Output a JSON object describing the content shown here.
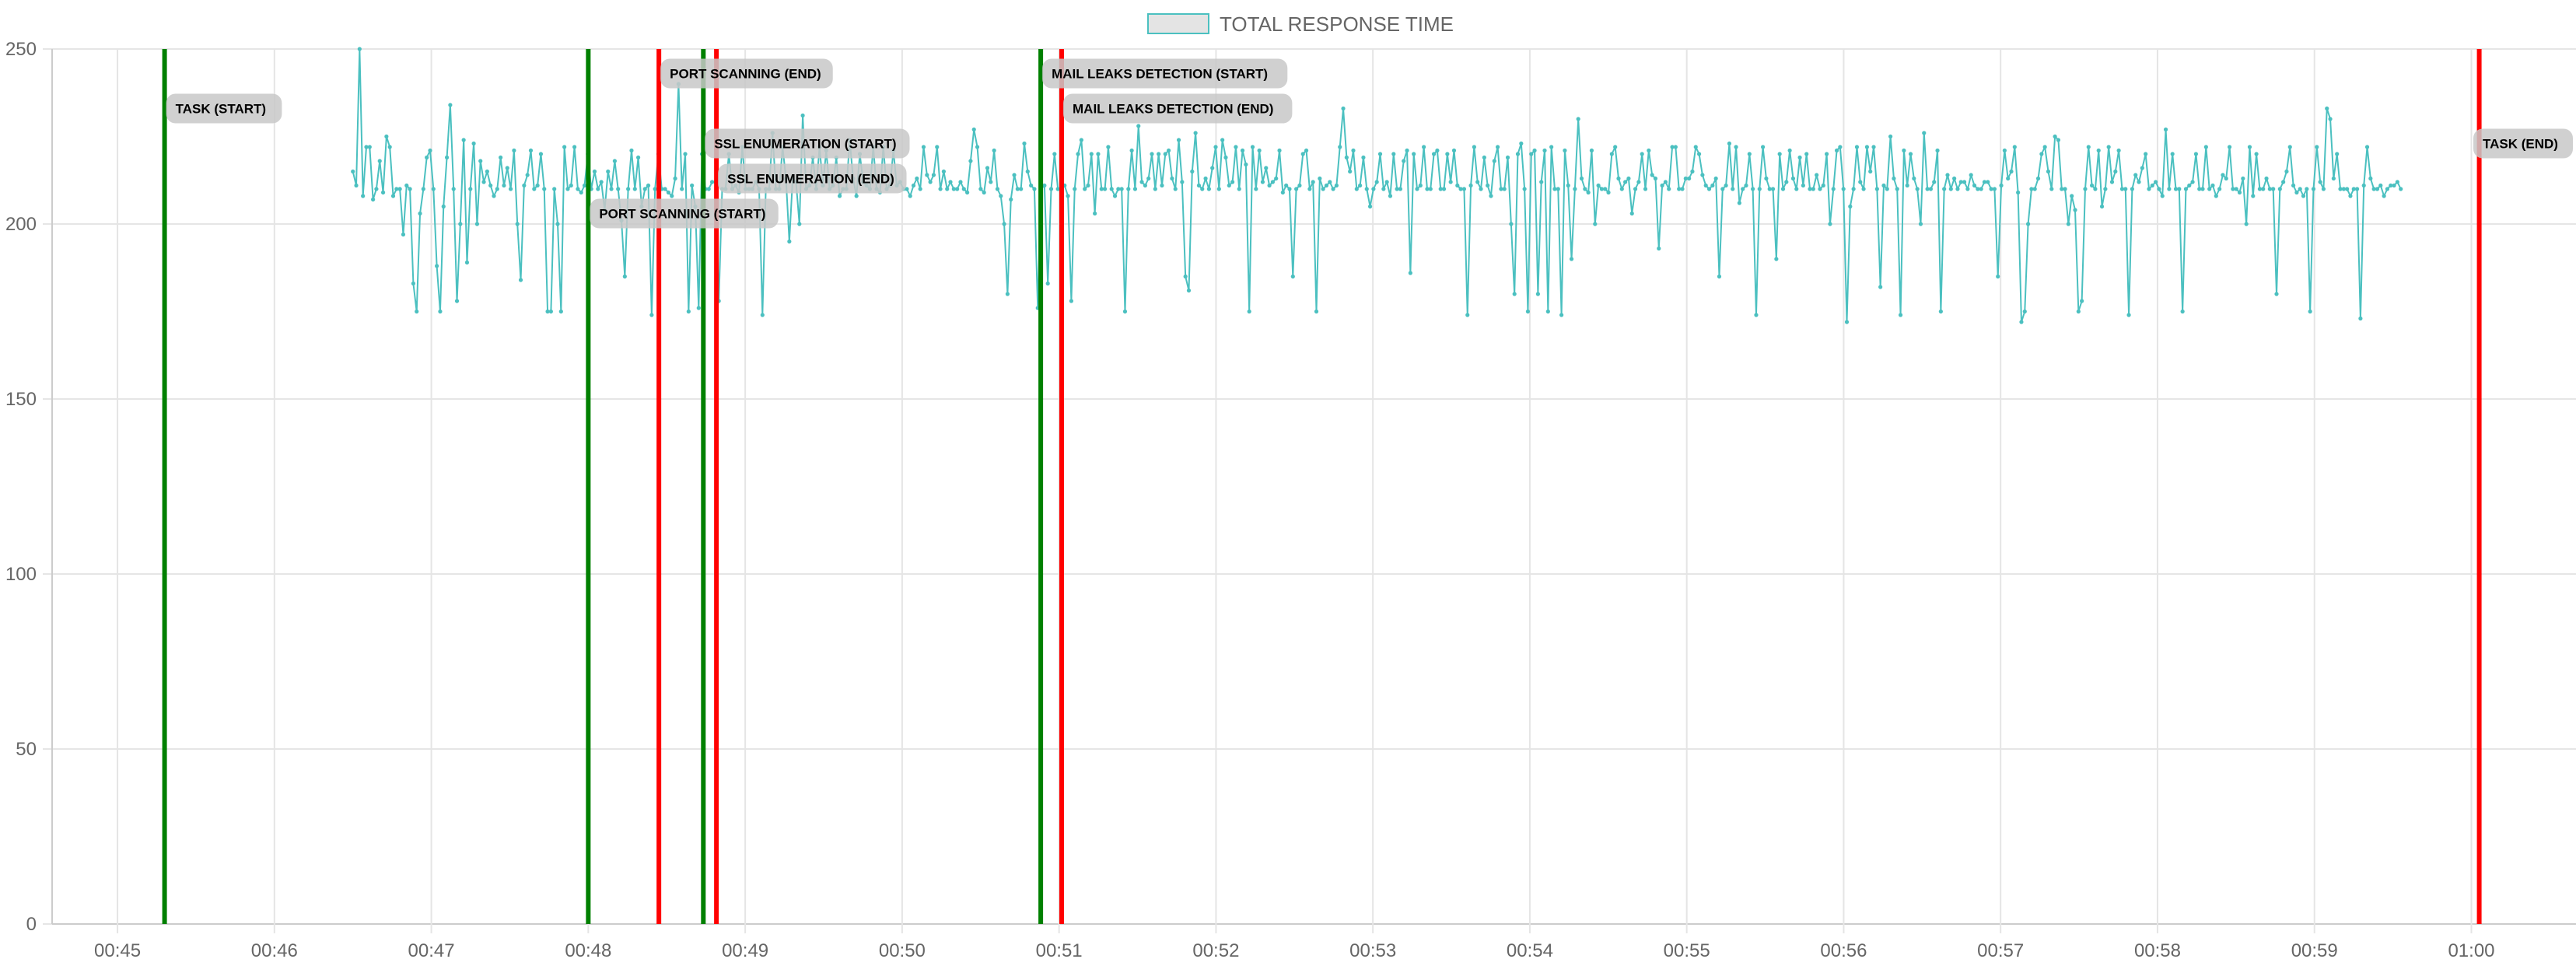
{
  "chart_data": {
    "type": "line",
    "title": "",
    "xlabel": "",
    "ylabel": "",
    "ylim": [
      0,
      250
    ],
    "yticks": [
      0,
      50,
      100,
      150,
      200,
      250
    ],
    "xlim": [
      "00:44:35",
      "01:00:40"
    ],
    "xticks": [
      "00:45",
      "00:46",
      "00:47",
      "00:48",
      "00:49",
      "00:50",
      "00:51",
      "00:52",
      "00:53",
      "00:54",
      "00:55",
      "00:56",
      "00:57",
      "00:58",
      "00:59",
      "01:00"
    ],
    "grid": true,
    "legend": {
      "position": "top-center"
    },
    "series": [
      {
        "name": "TOTAL RESPONSE TIME",
        "color": "#4bc0c0",
        "x_start": "00:46:30",
        "x_end": "00:59:33",
        "values": [
          215,
          211,
          250,
          208,
          222,
          222,
          207,
          210,
          218,
          209,
          225,
          222,
          208,
          210,
          210,
          197,
          211,
          210,
          183,
          175,
          203,
          210,
          219,
          221,
          210,
          188,
          175,
          205,
          219,
          234,
          210,
          178,
          200,
          224,
          189,
          210,
          223,
          200,
          218,
          212,
          215,
          211,
          208,
          210,
          219,
          211,
          216,
          210,
          221,
          200,
          184,
          211,
          214,
          221,
          210,
          211,
          220,
          210,
          175,
          175,
          210,
          200,
          175,
          222,
          210,
          211,
          222,
          210,
          209,
          211,
          220,
          210,
          215,
          210,
          212,
          204,
          215,
          210,
          218,
          210,
          201,
          185,
          210,
          221,
          210,
          219,
          205,
          210,
          211,
          174,
          210,
          220,
          210,
          210,
          209,
          208,
          213,
          240,
          210,
          220,
          175,
          211,
          205,
          176,
          220,
          210,
          210,
          212,
          212,
          178,
          210,
          210,
          220,
          210,
          211,
          209,
          222,
          210,
          210,
          210,
          212,
          210,
          174,
          210,
          210,
          226,
          210,
          210,
          222,
          213,
          195,
          213,
          212,
          200,
          231,
          210,
          211,
          219,
          210,
          222,
          211,
          221,
          210,
          211,
          219,
          208,
          210,
          210,
          224,
          213,
          208,
          220,
          212,
          211,
          210,
          222,
          210,
          209,
          222,
          210,
          211,
          221,
          211,
          212,
          210,
          210,
          208,
          211,
          213,
          210,
          222,
          214,
          212,
          214,
          222,
          210,
          215,
          210,
          212,
          210,
          210,
          212,
          210,
          209,
          218,
          227,
          222,
          210,
          209,
          216,
          212,
          221,
          210,
          208,
          200,
          180,
          207,
          214,
          210,
          210,
          223,
          215,
          211,
          210,
          176,
          210,
          211,
          183,
          210,
          220,
          210,
          210,
          211,
          208,
          178,
          210,
          220,
          224,
          210,
          211,
          220,
          203,
          220,
          210,
          210,
          222,
          210,
          208,
          210,
          210,
          175,
          210,
          221,
          210,
          228,
          212,
          211,
          213,
          220,
          210,
          220,
          211,
          220,
          221,
          213,
          210,
          224,
          212,
          185,
          181,
          215,
          226,
          211,
          210,
          213,
          210,
          216,
          222,
          210,
          224,
          219,
          211,
          212,
          222,
          210,
          221,
          217,
          175,
          222,
          210,
          221,
          212,
          216,
          211,
          212,
          213,
          221,
          209,
          211,
          210,
          185,
          210,
          211,
          220,
          221,
          210,
          212,
          175,
          213,
          210,
          211,
          212,
          210,
          211,
          222,
          233,
          219,
          215,
          221,
          210,
          211,
          219,
          210,
          205,
          210,
          212,
          220,
          210,
          212,
          208,
          220,
          210,
          210,
          218,
          221,
          186,
          220,
          210,
          211,
          222,
          210,
          210,
          220,
          221,
          210,
          210,
          220,
          212,
          221,
          211,
          210,
          210,
          174,
          211,
          222,
          212,
          210,
          219,
          211,
          208,
          218,
          222,
          210,
          210,
          219,
          200,
          180,
          220,
          223,
          210,
          175,
          220,
          221,
          180,
          212,
          221,
          175,
          222,
          210,
          210,
          174,
          221,
          211,
          190,
          210,
          230,
          213,
          210,
          209,
          221,
          200,
          211,
          210,
          210,
          209,
          220,
          222,
          213,
          210,
          212,
          213,
          203,
          210,
          212,
          220,
          210,
          221,
          214,
          213,
          193,
          211,
          212,
          210,
          222,
          222,
          210,
          210,
          213,
          213,
          215,
          222,
          220,
          214,
          211,
          210,
          211,
          213,
          185,
          210,
          211,
          223,
          210,
          222,
          206,
          210,
          211,
          220,
          210,
          174,
          210,
          222,
          213,
          210,
          210,
          190,
          220,
          210,
          212,
          221,
          213,
          210,
          219,
          211,
          220,
          210,
          210,
          214,
          210,
          211,
          220,
          200,
          210,
          221,
          222,
          210,
          172,
          205,
          210,
          222,
          212,
          210,
          222,
          215,
          222,
          210,
          182,
          211,
          210,
          225,
          213,
          210,
          174,
          221,
          211,
          220,
          213,
          210,
          200,
          226,
          210,
          210,
          212,
          221,
          175,
          210,
          214,
          210,
          213,
          210,
          212,
          212,
          210,
          214,
          211,
          210,
          210,
          212,
          212,
          210,
          210,
          185,
          211,
          221,
          213,
          215,
          222,
          209,
          172,
          175,
          200,
          210,
          210,
          213,
          220,
          222,
          215,
          210,
          225,
          224,
          210,
          210,
          200,
          208,
          204,
          175,
          178,
          210,
          222,
          211,
          210,
          221,
          205,
          210,
          222,
          212,
          215,
          221,
          210,
          210,
          174,
          210,
          214,
          212,
          216,
          220,
          210,
          211,
          212,
          210,
          208,
          227,
          210,
          220,
          210,
          210,
          175,
          210,
          211,
          212,
          220,
          210,
          210,
          222,
          210,
          211,
          208,
          210,
          214,
          213,
          222,
          210,
          210,
          209,
          213,
          200,
          222,
          208,
          220,
          210,
          210,
          213,
          210,
          210,
          180,
          210,
          212,
          215,
          222,
          211,
          209,
          210,
          208,
          210,
          175,
          210,
          222,
          212,
          210,
          233,
          230,
          213,
          220,
          210,
          210,
          210,
          208,
          210,
          210,
          173,
          211,
          222,
          213,
          210,
          210,
          211,
          208,
          210,
          211,
          211,
          212,
          210
        ]
      }
    ],
    "event_markers": [
      {
        "label": "TASK (START)",
        "time": "00:45:18",
        "kind": "start",
        "color": "#008000",
        "label_y": 233
      },
      {
        "label": "PORT SCANNING (START)",
        "time": "00:48:00",
        "kind": "start",
        "color": "#008000",
        "label_y": 203
      },
      {
        "label": "PORT SCANNING (END)",
        "time": "00:48:27",
        "kind": "end",
        "color": "#ff0000",
        "label_y": 243
      },
      {
        "label": "SSL ENUMERATION (START)",
        "time": "00:48:44",
        "kind": "start",
        "color": "#008000",
        "label_y": 223
      },
      {
        "label": "SSL ENUMERATION (END)",
        "time": "00:48:49",
        "kind": "end",
        "color": "#ff0000",
        "label_y": 213
      },
      {
        "label": "MAIL LEAKS DETECTION (START)",
        "time": "00:50:53",
        "kind": "start",
        "color": "#008000",
        "label_y": 243
      },
      {
        "label": "MAIL LEAKS DETECTION (END)",
        "time": "00:51:01",
        "kind": "end",
        "color": "#ff0000",
        "label_y": 233
      },
      {
        "label": "TASK (END)",
        "time": "01:00:03",
        "kind": "end",
        "color": "#ff0000",
        "label_y": 223
      }
    ]
  }
}
